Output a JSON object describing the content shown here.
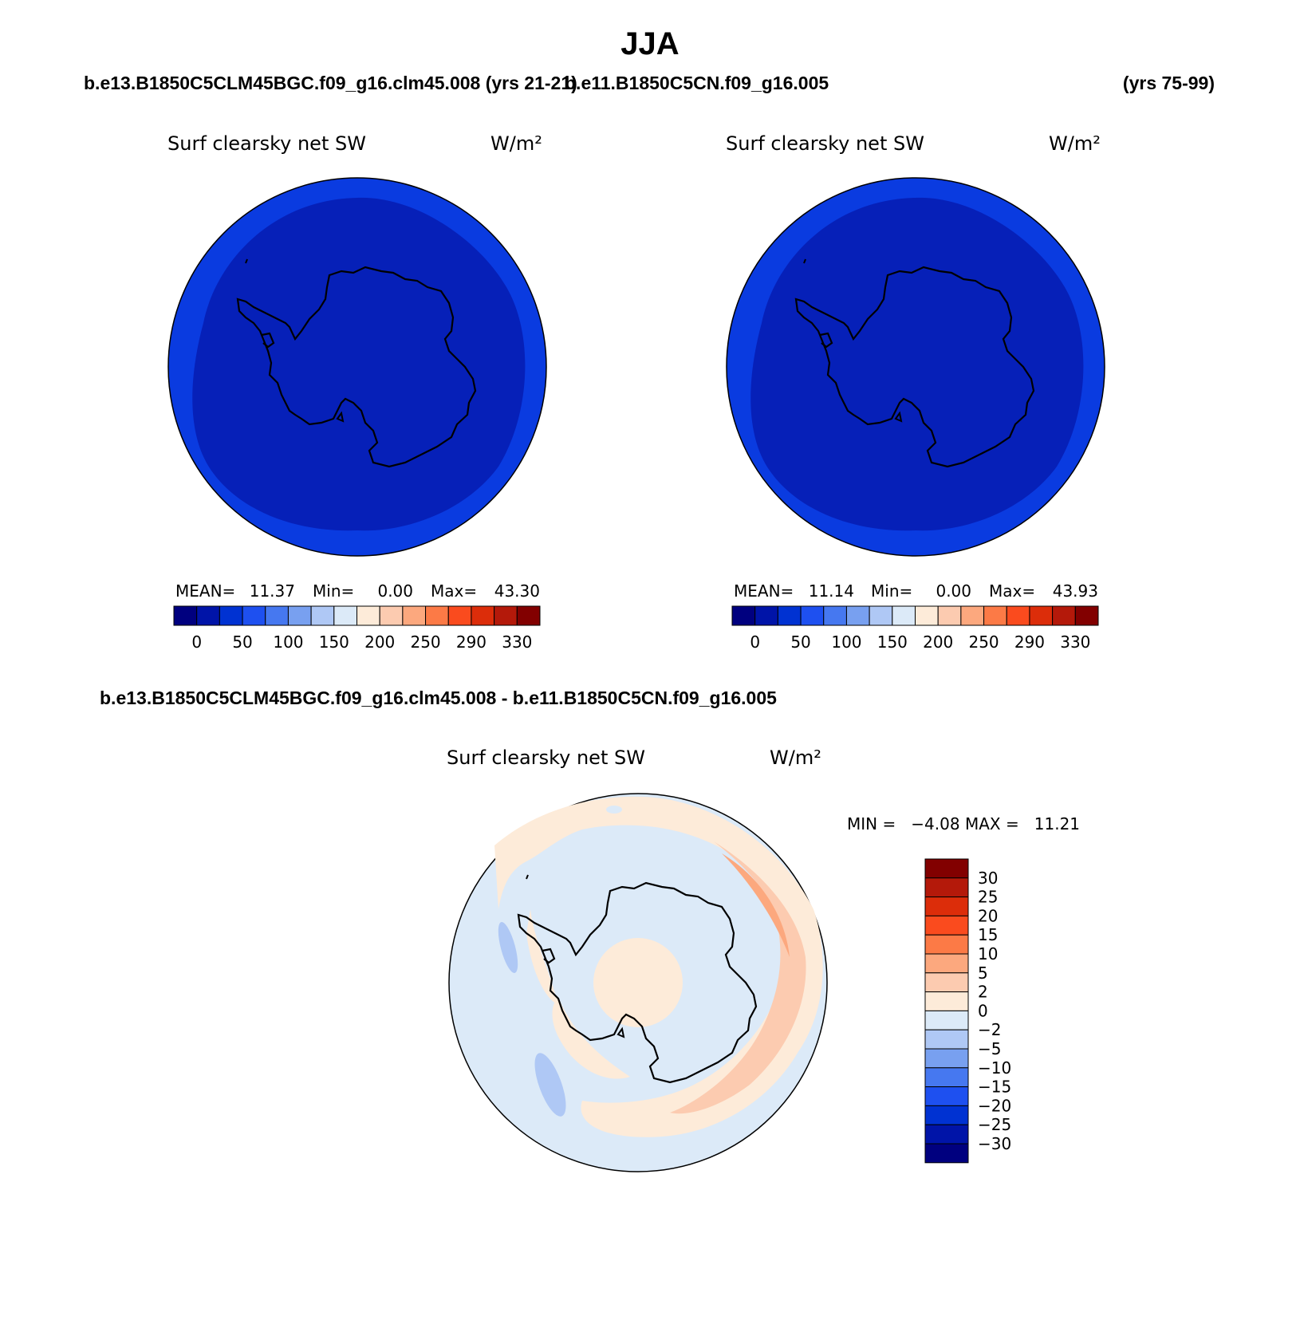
{
  "page": {
    "season": "JJA",
    "case_left": "b.e13.B1850C5CLM45BGC.f09_g16.clm45.008 (yrs 21-21)",
    "case_right": "b.e11.B1850C5CN.f09_g16.005",
    "case_right_years": "(yrs 75-99)",
    "diff_title": "b.e13.B1850C5CLM45BGC.f09_g16.clm45.008 - b.e11.B1850C5CN.f09_g16.005"
  },
  "panels": [
    {
      "variable": "Surf clearsky net SW",
      "units": "W/m²",
      "stats": {
        "mean_label": "MEAN=",
        "mean": "11.37",
        "min_label": "Min=",
        "min": "0.00",
        "max_label": "Max=",
        "max": "43.30"
      }
    },
    {
      "variable": "Surf clearsky net SW",
      "units": "W/m²",
      "stats": {
        "mean_label": "MEAN=",
        "mean": "11.14",
        "min_label": "Min=",
        "min": "0.00",
        "max_label": "Max=",
        "max": "43.93"
      }
    }
  ],
  "diff_panel": {
    "variable": "Surf clearsky net SW",
    "units": "W/m²",
    "minmax": "MIN =   −4.08 MAX =   11.21"
  },
  "colorbar_abs": {
    "colors": [
      "#00007f",
      "#0014a8",
      "#0032d2",
      "#1e50f0",
      "#4678f0",
      "#78a0f0",
      "#afc8f5",
      "#dceaf8",
      "#fdebd9",
      "#fccbb0",
      "#fca87e",
      "#fc7a46",
      "#fa4b1e",
      "#dc2d0a",
      "#b4190a",
      "#820000"
    ],
    "labels": [
      "0",
      "50",
      "100",
      "150",
      "200",
      "250",
      "290",
      "330"
    ]
  },
  "colorbar_diff": {
    "colors_top_to_bottom": [
      "#820000",
      "#b4190a",
      "#dc2d0a",
      "#fa4b1e",
      "#fc7a46",
      "#fca87e",
      "#fccbb0",
      "#fdebd9",
      "#dceaf8",
      "#afc8f5",
      "#78a0f0",
      "#4678f0",
      "#1e50f0",
      "#0032d2",
      "#0014a8",
      "#00007f"
    ],
    "labels": [
      "30",
      "25",
      "20",
      "15",
      "10",
      "5",
      "2",
      "0",
      "−2",
      "−5",
      "−10",
      "−15",
      "−20",
      "−25",
      "−30"
    ]
  },
  "map_colors": {
    "abs_outer": "#0a3be0",
    "abs_inner": "#0620b8",
    "diff_base": "#dceaf8",
    "diff_pos_light": "#fdebd9",
    "diff_pos_mid": "#fccbb0",
    "diff_pos_strong": "#fca87e",
    "diff_neg": "#afc8f5"
  }
}
